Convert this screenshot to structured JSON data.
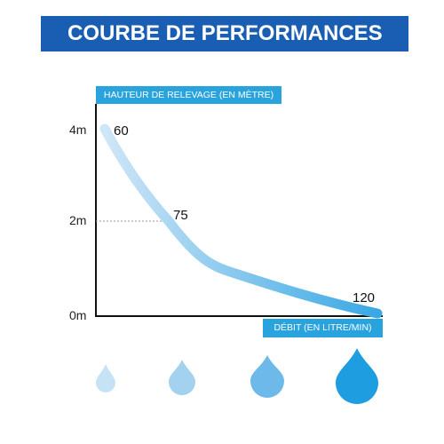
{
  "banner": {
    "title": "COURBE DE PERFORMANCES"
  },
  "chart_data": {
    "type": "line",
    "ylabel": "HAUTEUR DE RELEVAGE (EN MÈTRE)",
    "xlabel": "DÉBIT (EN LITRE/MIN)",
    "y_ticks": [
      "4m",
      "2m",
      "0m"
    ],
    "y_tick_values": [
      4,
      2,
      0
    ],
    "ylim": [
      0,
      4
    ],
    "x": [
      60,
      75,
      120
    ],
    "y": [
      4,
      2,
      0
    ],
    "point_labels": [
      "60",
      "75",
      "120"
    ],
    "grid": false,
    "colors": {
      "axis": "#111111",
      "curve_start": "#cfe6f7",
      "curve_end": "#3aa8e4",
      "label_bg": "#29a3de",
      "banner_bg": "#1a5eb3"
    }
  },
  "drops": {
    "colors": [
      "#c6e3f5",
      "#a3d2f0",
      "#6db9ea",
      "#1e9ee0"
    ]
  }
}
